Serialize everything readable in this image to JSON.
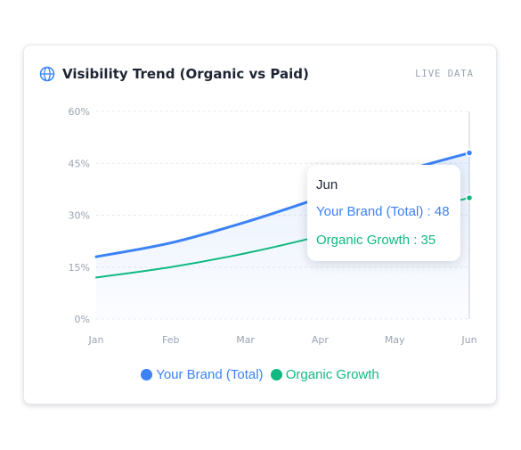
{
  "card": {
    "title": "Visibility Trend (Organic vs Paid)",
    "badge": "LIVE DATA",
    "title_icon": "globe-icon"
  },
  "colors": {
    "brand_total": "#3b82f6",
    "organic": "#10b981",
    "grid": "#e6e9ef",
    "tick": "#9aa3b2"
  },
  "chart_data": {
    "type": "area",
    "categories": [
      "Jan",
      "Feb",
      "Mar",
      "Apr",
      "May",
      "Jun"
    ],
    "y_ticks": [
      "0%",
      "15%",
      "30%",
      "45%",
      "60%"
    ],
    "ylim": [
      0,
      60
    ],
    "grid": true,
    "legend_position": "bottom",
    "series": [
      {
        "name": "Your Brand (Total)",
        "values": [
          18,
          22,
          28,
          35,
          42,
          48
        ],
        "color": "#3b82f6",
        "filled": true
      },
      {
        "name": "Organic Growth",
        "values": [
          12,
          15,
          19,
          24,
          30,
          35
        ],
        "color": "#10b981",
        "filled": false
      }
    ],
    "tooltip": {
      "category": "Jun",
      "rows": [
        {
          "label": "Your Brand (Total) : 48",
          "color": "#3b82f6"
        },
        {
          "label": "Organic Growth : 35",
          "color": "#10b981"
        }
      ]
    }
  }
}
